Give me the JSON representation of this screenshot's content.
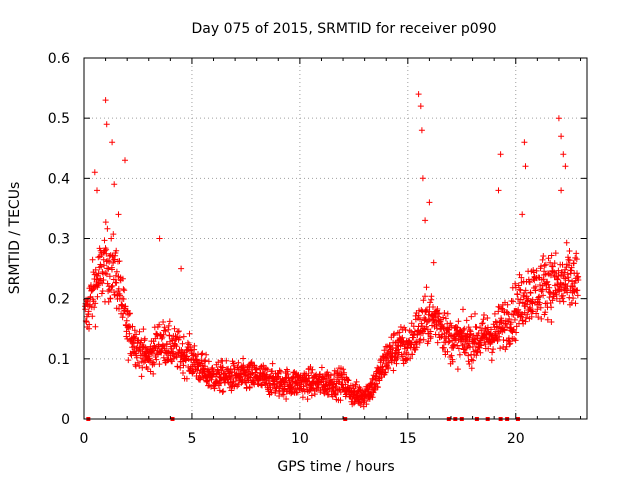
{
  "chart_data": {
    "type": "scatter",
    "title": "Day 075 of 2015, SRMTID for receiver p090",
    "xlabel": "GPS time / hours",
    "ylabel": "SRMTID / TECUs",
    "xlim": [
      0,
      23.3
    ],
    "ylim": [
      0,
      0.6
    ],
    "xticks": [
      "0",
      "5",
      "10",
      "15",
      "20"
    ],
    "yticks": [
      "0",
      "0.1",
      "0.2",
      "0.3",
      "0.4",
      "0.5",
      "0.6"
    ],
    "grid": true,
    "marker": "+",
    "series": [
      {
        "name": "SRMTID",
        "color": "#ff0000",
        "envelope": {
          "hours": [
            0.0,
            0.5,
            1.0,
            1.5,
            2.0,
            2.5,
            3.0,
            3.5,
            4.0,
            4.5,
            5.0,
            5.5,
            6.0,
            7.0,
            8.0,
            9.0,
            10.0,
            11.0,
            12.0,
            12.5,
            13.0,
            13.5,
            14.0,
            14.5,
            15.0,
            15.5,
            16.0,
            16.5,
            17.0,
            18.0,
            19.0,
            20.0,
            20.5,
            21.0,
            21.5,
            22.0,
            22.5,
            23.0
          ],
          "typical": [
            0.16,
            0.22,
            0.26,
            0.24,
            0.15,
            0.12,
            0.1,
            0.13,
            0.12,
            0.11,
            0.1,
            0.08,
            0.07,
            0.07,
            0.07,
            0.06,
            0.06,
            0.06,
            0.06,
            0.04,
            0.04,
            0.06,
            0.1,
            0.12,
            0.12,
            0.15,
            0.17,
            0.16,
            0.13,
            0.13,
            0.14,
            0.18,
            0.21,
            0.21,
            0.23,
            0.22,
            0.23,
            0.22
          ]
        },
        "spikes": [
          {
            "x": 0.5,
            "y": 0.41
          },
          {
            "x": 0.6,
            "y": 0.38
          },
          {
            "x": 1.0,
            "y": 0.53
          },
          {
            "x": 1.05,
            "y": 0.49
          },
          {
            "x": 1.3,
            "y": 0.46
          },
          {
            "x": 1.4,
            "y": 0.39
          },
          {
            "x": 1.9,
            "y": 0.43
          },
          {
            "x": 1.6,
            "y": 0.34
          },
          {
            "x": 3.5,
            "y": 0.3
          },
          {
            "x": 4.5,
            "y": 0.25
          },
          {
            "x": 15.5,
            "y": 0.54
          },
          {
            "x": 15.6,
            "y": 0.52
          },
          {
            "x": 15.65,
            "y": 0.48
          },
          {
            "x": 15.7,
            "y": 0.4
          },
          {
            "x": 15.8,
            "y": 0.33
          },
          {
            "x": 16.0,
            "y": 0.36
          },
          {
            "x": 16.2,
            "y": 0.26
          },
          {
            "x": 19.3,
            "y": 0.44
          },
          {
            "x": 19.2,
            "y": 0.38
          },
          {
            "x": 20.4,
            "y": 0.46
          },
          {
            "x": 20.45,
            "y": 0.42
          },
          {
            "x": 20.3,
            "y": 0.34
          },
          {
            "x": 22.0,
            "y": 0.5
          },
          {
            "x": 22.1,
            "y": 0.47
          },
          {
            "x": 22.2,
            "y": 0.44
          },
          {
            "x": 22.3,
            "y": 0.42
          },
          {
            "x": 22.1,
            "y": 0.38
          }
        ],
        "zero_points": [
          0.2,
          4.1,
          12.1,
          16.9,
          17.2,
          17.5,
          18.2,
          18.7,
          19.3,
          19.6,
          20.1
        ]
      }
    ]
  }
}
